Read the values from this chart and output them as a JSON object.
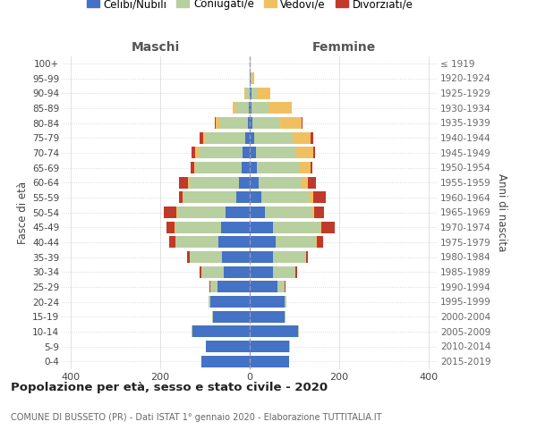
{
  "age_groups": [
    "100+",
    "95-99",
    "90-94",
    "85-89",
    "80-84",
    "75-79",
    "70-74",
    "65-69",
    "60-64",
    "55-59",
    "50-54",
    "45-49",
    "40-44",
    "35-39",
    "30-34",
    "25-29",
    "20-24",
    "15-19",
    "10-14",
    "5-9",
    "0-4"
  ],
  "birth_years": [
    "≤ 1919",
    "1920-1924",
    "1925-1929",
    "1930-1934",
    "1935-1939",
    "1940-1944",
    "1945-1949",
    "1950-1954",
    "1955-1959",
    "1960-1964",
    "1965-1969",
    "1970-1974",
    "1975-1979",
    "1980-1984",
    "1985-1989",
    "1990-1994",
    "1995-1999",
    "2000-2004",
    "2005-2009",
    "2010-2014",
    "2015-2019"
  ],
  "male": {
    "celibi": [
      0,
      0,
      1,
      3,
      4,
      10,
      16,
      18,
      24,
      30,
      55,
      65,
      70,
      62,
      58,
      73,
      88,
      82,
      128,
      98,
      108
    ],
    "coniugati": [
      0,
      1,
      8,
      28,
      62,
      88,
      98,
      102,
      112,
      118,
      108,
      102,
      96,
      72,
      50,
      16,
      4,
      2,
      2,
      1,
      0
    ],
    "vedovi": [
      0,
      0,
      4,
      8,
      10,
      7,
      9,
      5,
      3,
      2,
      2,
      1,
      1,
      1,
      1,
      0,
      0,
      0,
      0,
      0,
      0
    ],
    "divorziati": [
      0,
      0,
      0,
      0,
      2,
      8,
      8,
      8,
      20,
      8,
      28,
      18,
      14,
      5,
      3,
      1,
      0,
      0,
      0,
      0,
      0
    ]
  },
  "female": {
    "nubili": [
      0,
      1,
      3,
      4,
      6,
      10,
      13,
      15,
      20,
      26,
      33,
      52,
      58,
      52,
      52,
      62,
      78,
      78,
      108,
      88,
      88
    ],
    "coniugate": [
      0,
      2,
      12,
      38,
      62,
      86,
      90,
      96,
      96,
      106,
      106,
      106,
      90,
      72,
      50,
      16,
      4,
      2,
      2,
      1,
      0
    ],
    "vedove": [
      1,
      6,
      30,
      52,
      48,
      40,
      38,
      24,
      14,
      9,
      4,
      2,
      1,
      1,
      0,
      0,
      0,
      0,
      0,
      0,
      0
    ],
    "divorziate": [
      0,
      0,
      0,
      0,
      2,
      5,
      5,
      5,
      18,
      28,
      22,
      30,
      14,
      5,
      3,
      1,
      0,
      0,
      0,
      0,
      0
    ]
  },
  "colors": {
    "celibi": "#4472c4",
    "coniugati": "#b8cfa0",
    "vedovi": "#f0c060",
    "divorziati": "#c0392b"
  },
  "xlim": 420,
  "title": "Popolazione per età, sesso e stato civile - 2020",
  "subtitle": "COMUNE DI BUSSETO (PR) - Dati ISTAT 1° gennaio 2020 - Elaborazione TUTTITALIA.IT",
  "ylabel_left": "Fasce di età",
  "ylabel_right": "Anni di nascita",
  "label_maschi": "Maschi",
  "label_femmine": "Femmine",
  "legend_labels": [
    "Celibi/Nubili",
    "Coniugati/e",
    "Vedovi/e",
    "Divorziati/e"
  ],
  "bg_color": "#ffffff",
  "grid_color": "#cccccc"
}
